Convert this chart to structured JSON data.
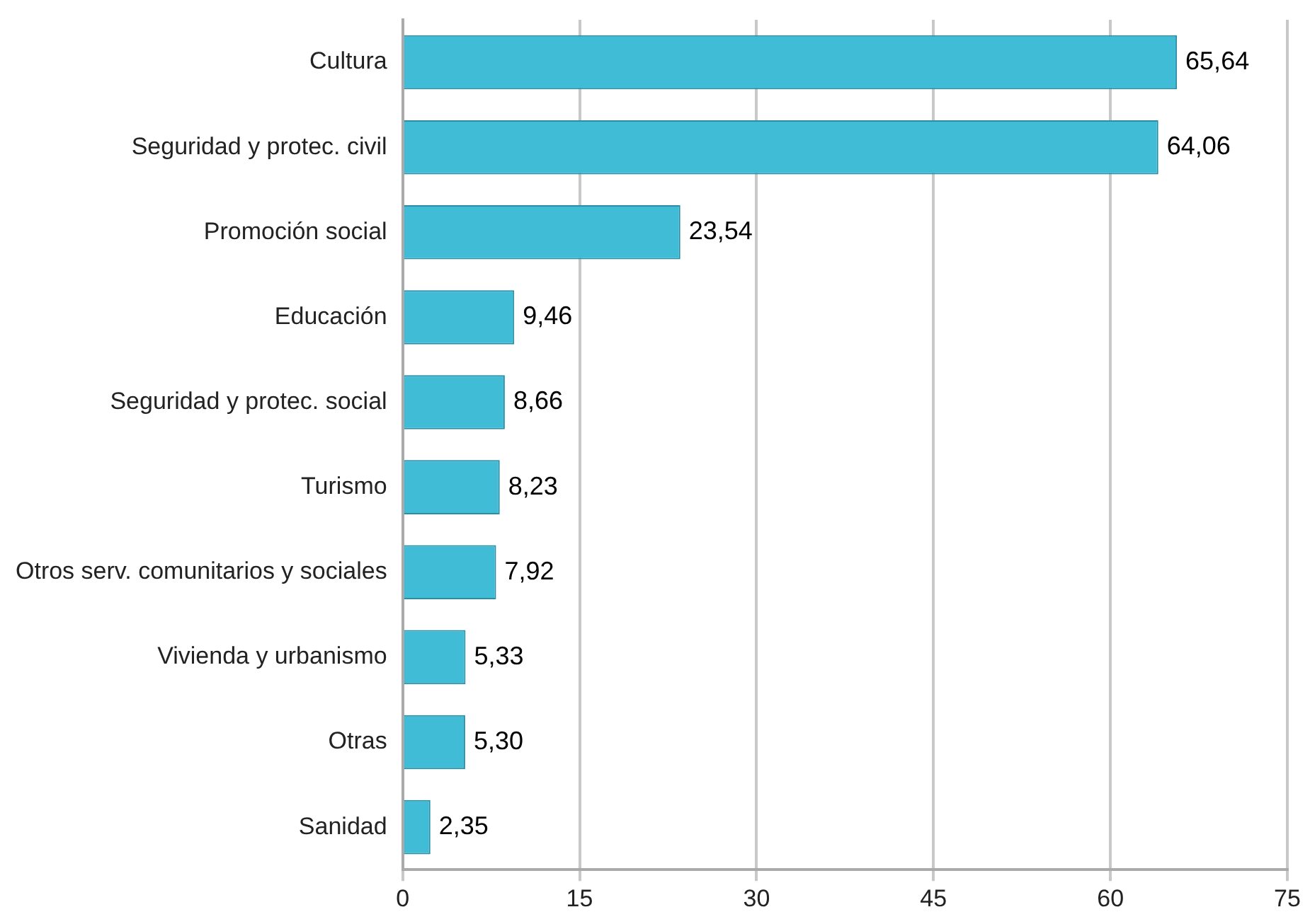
{
  "chart_data": {
    "type": "bar",
    "orientation": "horizontal",
    "categories": [
      "Cultura",
      "Seguridad y protec. civil",
      "Promoción social",
      "Educación",
      "Seguridad y protec. social",
      "Turismo",
      "Otros serv. comunitarios y sociales",
      "Vivienda y urbanismo",
      "Otras",
      "Sanidad"
    ],
    "values": [
      65.64,
      64.06,
      23.54,
      9.46,
      8.66,
      8.23,
      7.92,
      5.33,
      5.3,
      2.35
    ],
    "value_labels": [
      "65,64",
      "64,06",
      "23,54",
      "9,46",
      "8,66",
      "8,23",
      "7,92",
      "5,33",
      "5,30",
      "2,35"
    ],
    "color": "#41bcd6",
    "xlim": [
      0,
      75
    ],
    "xticks": [
      0,
      15,
      30,
      45,
      60,
      75
    ],
    "grid": "x"
  }
}
